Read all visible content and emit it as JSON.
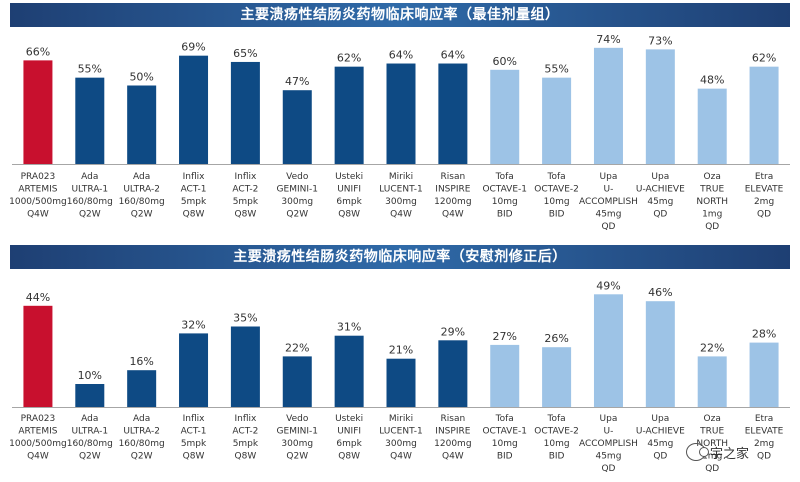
{
  "colors": {
    "featured": "#c8102e",
    "dark": "#0e4a84",
    "light": "#9dc3e6",
    "text": "#333333",
    "title_bg": "#1f4e8c"
  },
  "categories": [
    [
      "PRA023",
      "ARTEMIS",
      "1000/500mg",
      "Q4W"
    ],
    [
      "Ada",
      "ULTRA-1",
      "160/80mg",
      "Q2W"
    ],
    [
      "Ada",
      "ULTRA-2",
      "160/80mg",
      "Q2W"
    ],
    [
      "Inflix",
      "ACT-1",
      "5mpk",
      "Q8W"
    ],
    [
      "Inflix",
      "ACT-2",
      "5mpk",
      "Q8W"
    ],
    [
      "Vedo",
      "GEMINI-1",
      "300mg",
      "Q2W"
    ],
    [
      "Usteki",
      "UNIFI",
      "6mpk",
      "Q8W"
    ],
    [
      "Miriki",
      "LUCENT-1",
      "300mg",
      "Q4W"
    ],
    [
      "Risan",
      "INSPIRE",
      "1200mg",
      "Q4W"
    ],
    [
      "Tofa",
      "OCTAVE-1",
      "10mg",
      "BID"
    ],
    [
      "Tofa",
      "OCTAVE-2",
      "10mg",
      "BID"
    ],
    [
      "Upa",
      "U-",
      "ACCOMPLISH",
      "45mg",
      "QD"
    ],
    [
      "Upa",
      "U-ACHIEVE",
      "45mg",
      "QD"
    ],
    [
      "Oza",
      "TRUE",
      "NORTH",
      "1mg",
      "QD"
    ],
    [
      "Etra",
      "ELEVATE",
      "2mg",
      "QD"
    ]
  ],
  "bar_colors": [
    "featured",
    "dark",
    "dark",
    "dark",
    "dark",
    "dark",
    "dark",
    "dark",
    "dark",
    "light",
    "light",
    "light",
    "light",
    "light",
    "light"
  ],
  "chart_data": [
    {
      "type": "bar",
      "title": "主要溃疡性结肠炎药物临床响应率（最佳剂量组）",
      "values": [
        66,
        55,
        50,
        69,
        65,
        47,
        62,
        64,
        64,
        60,
        55,
        74,
        73,
        48,
        62
      ],
      "labels": [
        "66%",
        "55%",
        "50%",
        "69%",
        "65%",
        "47%",
        "62%",
        "64%",
        "64%",
        "60%",
        "55%",
        "74%",
        "73%",
        "48%",
        "62%"
      ],
      "unit": "%",
      "ylim": [
        0,
        80
      ],
      "xlabel": "",
      "ylabel": ""
    },
    {
      "type": "bar",
      "title": "主要溃疡性结肠炎药物临床响应率（安慰剂修正后）",
      "values": [
        44,
        10,
        16,
        32,
        35,
        22,
        31,
        21,
        29,
        27,
        26,
        49,
        46,
        22,
        28
      ],
      "labels": [
        "44%",
        "10%",
        "16%",
        "32%",
        "35%",
        "22%",
        "31%",
        "21%",
        "29%",
        "27%",
        "26%",
        "49%",
        "46%",
        "22%",
        "28%"
      ],
      "unit": "%",
      "ylim": [
        0,
        60
      ],
      "xlabel": "",
      "ylabel": ""
    }
  ],
  "watermark": "宇之家"
}
